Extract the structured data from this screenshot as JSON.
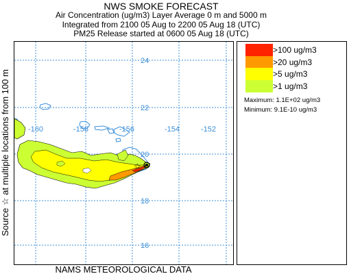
{
  "header": {
    "title": "NWS SMOKE FORECAST",
    "line1": "Air Concentration (ug/m3) Layer Average    0 m and  5000 m",
    "line2": "Integrated from 2100 05 Aug to 2200 05 Aug 18 (UTC)",
    "line3": "PM25 Release started at 0600 05 Aug 18 (UTC)"
  },
  "side_label": "Source ☆   at multiple locations   from  100 m",
  "footer": "NAMS METEOROLOGICAL DATA",
  "map": {
    "latitudes": [
      "24",
      "22",
      "20",
      "18",
      "16"
    ],
    "longitudes": [
      "-160",
      "-158",
      "-156",
      "-154",
      "-152"
    ],
    "grid_color": "#3a8ed8",
    "coast_color": "#3a8ed8"
  },
  "legend": {
    "items": [
      {
        "label": ">100 ug/m3",
        "color": "#ff2200"
      },
      {
        "label": ">20 ug/m3",
        "color": "#ff9900"
      },
      {
        "label": ">5 ug/m3",
        "color": "#ffff00"
      },
      {
        "label": ">1 ug/m3",
        "color": "#ccff33"
      }
    ],
    "maximum": "Maximum: 1.1E+02 ug/m3",
    "minimum": "Minimum: 9.1E-10 ug/m3"
  }
}
